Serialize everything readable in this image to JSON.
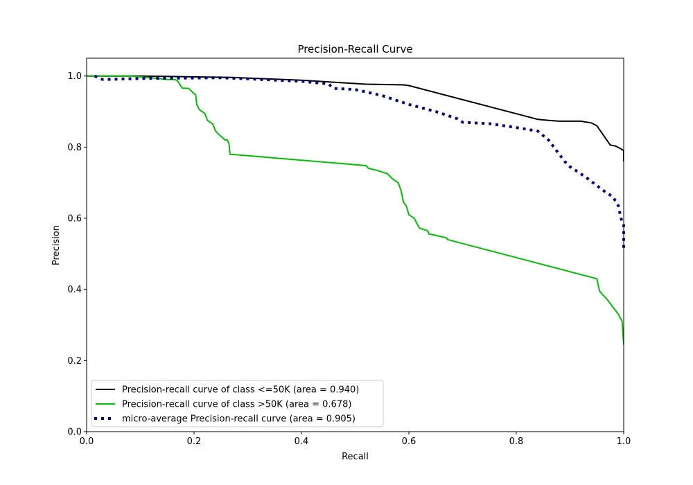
{
  "chart_data": {
    "type": "line",
    "title": "Precision-Recall Curve",
    "xlabel": "Recall",
    "ylabel": "Precision",
    "xlim": [
      0.0,
      1.0
    ],
    "ylim": [
      0.0,
      1.05
    ],
    "xticks": [
      "0.0",
      "0.2",
      "0.4",
      "0.6",
      "0.8",
      "1.0"
    ],
    "yticks": [
      "0.0",
      "0.2",
      "0.4",
      "0.6",
      "0.8",
      "1.0"
    ],
    "grid": false,
    "legend_position": "lower-left",
    "series": [
      {
        "name": "Precision-recall curve of class  <=50K (area = 0.940)",
        "color": "#000000",
        "style": "solid",
        "points": [
          [
            0,
            1.0
          ],
          [
            0.1,
            1.0
          ],
          [
            0.27,
            0.996
          ],
          [
            0.4,
            0.988
          ],
          [
            0.52,
            0.977
          ],
          [
            0.59,
            0.975
          ],
          [
            0.6,
            0.973
          ],
          [
            0.82,
            0.886
          ],
          [
            0.84,
            0.878
          ],
          [
            0.86,
            0.875
          ],
          [
            0.88,
            0.873
          ],
          [
            0.92,
            0.873
          ],
          [
            0.94,
            0.868
          ],
          [
            0.95,
            0.86
          ],
          [
            0.975,
            0.806
          ],
          [
            0.985,
            0.803
          ],
          [
            0.995,
            0.795
          ],
          [
            1.0,
            0.79
          ],
          [
            1.0,
            0.76
          ]
        ]
      },
      {
        "name": "Precision-recall curve of class  >50K (area = 0.678)",
        "color": "#00bf00",
        "style": "solid",
        "points": [
          [
            0,
            1.0
          ],
          [
            0.08,
            1.0
          ],
          [
            0.12,
            0.995
          ],
          [
            0.15,
            0.99
          ],
          [
            0.165,
            0.99
          ],
          [
            0.17,
            0.985
          ],
          [
            0.178,
            0.966
          ],
          [
            0.19,
            0.965
          ],
          [
            0.2,
            0.95
          ],
          [
            0.203,
            0.948
          ],
          [
            0.205,
            0.92
          ],
          [
            0.21,
            0.905
          ],
          [
            0.22,
            0.895
          ],
          [
            0.225,
            0.875
          ],
          [
            0.235,
            0.865
          ],
          [
            0.24,
            0.845
          ],
          [
            0.25,
            0.83
          ],
          [
            0.258,
            0.82
          ],
          [
            0.262,
            0.82
          ],
          [
            0.265,
            0.81
          ],
          [
            0.267,
            0.78
          ],
          [
            0.52,
            0.748
          ],
          [
            0.525,
            0.74
          ],
          [
            0.54,
            0.735
          ],
          [
            0.55,
            0.73
          ],
          [
            0.56,
            0.725
          ],
          [
            0.57,
            0.71
          ],
          [
            0.58,
            0.7
          ],
          [
            0.585,
            0.68
          ],
          [
            0.59,
            0.645
          ],
          [
            0.595,
            0.635
          ],
          [
            0.6,
            0.61
          ],
          [
            0.61,
            0.6
          ],
          [
            0.615,
            0.585
          ],
          [
            0.62,
            0.572
          ],
          [
            0.635,
            0.565
          ],
          [
            0.637,
            0.556
          ],
          [
            0.67,
            0.545
          ],
          [
            0.672,
            0.54
          ],
          [
            0.95,
            0.43
          ],
          [
            0.955,
            0.395
          ],
          [
            0.97,
            0.37
          ],
          [
            0.98,
            0.35
          ],
          [
            0.99,
            0.33
          ],
          [
            0.997,
            0.31
          ],
          [
            1.0,
            0.245
          ]
        ]
      },
      {
        "name": "micro-average Precision-recall curve (area = 0.905)",
        "color": "#000080",
        "style": "dotted",
        "points": [
          [
            0.015,
            1.0
          ],
          [
            0.03,
            0.99
          ],
          [
            0.1,
            0.993
          ],
          [
            0.25,
            0.995
          ],
          [
            0.3,
            0.992
          ],
          [
            0.4,
            0.985
          ],
          [
            0.45,
            0.978
          ],
          [
            0.46,
            0.965
          ],
          [
            0.5,
            0.962
          ],
          [
            0.55,
            0.945
          ],
          [
            0.6,
            0.92
          ],
          [
            0.65,
            0.9
          ],
          [
            0.69,
            0.88
          ],
          [
            0.7,
            0.87
          ],
          [
            0.75,
            0.866
          ],
          [
            0.8,
            0.855
          ],
          [
            0.84,
            0.845
          ],
          [
            0.86,
            0.82
          ],
          [
            0.88,
            0.78
          ],
          [
            0.89,
            0.76
          ],
          [
            0.9,
            0.745
          ],
          [
            0.93,
            0.715
          ],
          [
            0.96,
            0.68
          ],
          [
            0.98,
            0.66
          ],
          [
            0.99,
            0.635
          ],
          [
            0.995,
            0.6
          ],
          [
            1.0,
            0.58
          ],
          [
            1.0,
            0.505
          ]
        ]
      }
    ]
  }
}
